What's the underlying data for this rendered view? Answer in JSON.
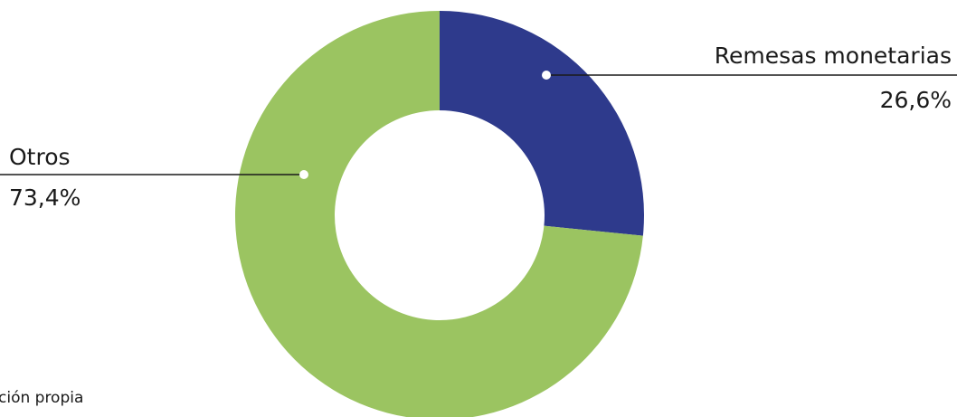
{
  "chart_data": {
    "type": "pie",
    "donut": true,
    "categories": [
      "Remesas monetarias",
      "Otros"
    ],
    "values": [
      26.6,
      73.4
    ],
    "value_labels": [
      "26,6%",
      "73,4%"
    ],
    "colors": [
      "#2e3a8c",
      "#9bc461"
    ],
    "title": "",
    "legend": "none"
  },
  "source_note": "ción propia"
}
